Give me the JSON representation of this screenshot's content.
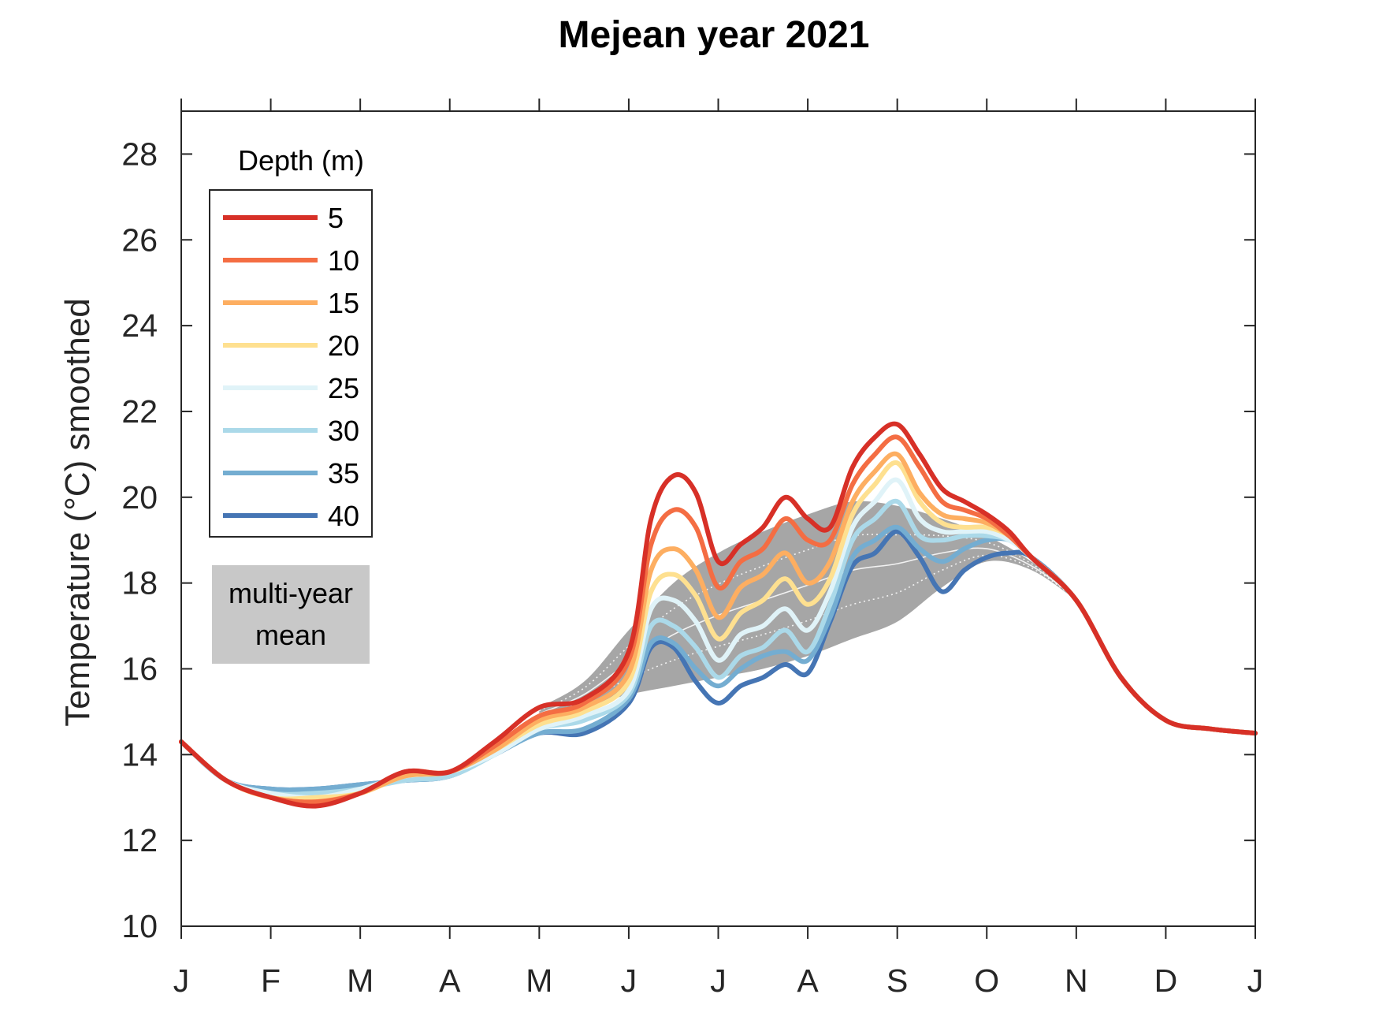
{
  "chart_data": {
    "type": "line",
    "title": "Mejean year 2021",
    "xlabel": "",
    "ylabel": "Temperature (°C) smoothed",
    "ylim": [
      10,
      29
    ],
    "yticks": [
      10,
      12,
      14,
      16,
      18,
      20,
      22,
      24,
      26,
      28
    ],
    "xlim": [
      0,
      12
    ],
    "month_ticks": [
      "J",
      "F",
      "M",
      "A",
      "M",
      "J",
      "J",
      "A",
      "S",
      "O",
      "N",
      "D",
      "J"
    ],
    "grid": false,
    "legend": {
      "title": "Depth (m)",
      "placement": "top-left"
    },
    "x_unit": "month",
    "x": [
      0,
      0.5,
      1,
      1.5,
      2,
      2.5,
      3,
      3.5,
      4,
      4.5,
      5,
      5.25,
      5.5,
      5.75,
      6,
      6.25,
      6.5,
      6.75,
      7,
      7.25,
      7.5,
      7.75,
      8,
      8.25,
      8.5,
      8.75,
      9,
      9.25,
      9.5,
      10,
      10.5,
      11,
      11.5,
      12
    ],
    "series": [
      {
        "name": "5",
        "color": "#d73027",
        "values": [
          14.3,
          13.4,
          13.0,
          12.8,
          13.1,
          13.6,
          13.6,
          14.3,
          15.1,
          15.3,
          16.4,
          19.5,
          20.5,
          20.1,
          18.5,
          18.9,
          19.3,
          20.0,
          19.5,
          19.3,
          20.7,
          21.4,
          21.7,
          21.0,
          20.2,
          19.9,
          19.6,
          19.2,
          18.6,
          17.6,
          15.8,
          14.8,
          14.6,
          14.5
        ]
      },
      {
        "name": "10",
        "color": "#f46d43",
        "values": [
          14.3,
          13.4,
          13.0,
          12.9,
          13.1,
          13.6,
          13.6,
          14.2,
          14.9,
          15.2,
          16.2,
          18.9,
          19.7,
          19.3,
          17.9,
          18.5,
          18.8,
          19.5,
          19.0,
          19.0,
          20.3,
          21.0,
          21.4,
          20.7,
          19.9,
          19.7,
          19.5,
          19.1,
          18.6,
          17.6,
          15.8,
          14.8,
          14.6,
          14.5
        ]
      },
      {
        "name": "15",
        "color": "#fdae61",
        "values": [
          14.3,
          13.4,
          13.0,
          12.9,
          13.1,
          13.5,
          13.6,
          14.1,
          14.8,
          15.1,
          15.9,
          18.3,
          18.8,
          18.3,
          17.2,
          17.9,
          18.2,
          18.7,
          18.0,
          18.5,
          19.9,
          20.6,
          21.0,
          20.1,
          19.6,
          19.5,
          19.4,
          19.1,
          18.6,
          17.6,
          15.8,
          14.8,
          14.6,
          14.5
        ]
      },
      {
        "name": "20",
        "color": "#fee090",
        "values": [
          14.3,
          13.4,
          13.0,
          13.0,
          13.1,
          13.5,
          13.6,
          14.1,
          14.7,
          15.0,
          15.7,
          17.8,
          18.2,
          17.7,
          16.7,
          17.3,
          17.6,
          18.1,
          17.5,
          18.1,
          19.6,
          20.3,
          20.8,
          19.9,
          19.4,
          19.3,
          19.3,
          19.1,
          18.6,
          17.6,
          15.8,
          14.8,
          14.6,
          14.5
        ]
      },
      {
        "name": "25",
        "color": "#e0f3f8",
        "values": [
          14.3,
          13.4,
          13.1,
          13.0,
          13.2,
          13.5,
          13.6,
          14.0,
          14.6,
          14.9,
          15.5,
          17.4,
          17.6,
          17.1,
          16.2,
          16.8,
          17.0,
          17.4,
          16.9,
          17.8,
          19.3,
          19.9,
          20.4,
          19.5,
          19.2,
          19.2,
          19.2,
          19.0,
          18.6,
          17.6,
          15.8,
          14.8,
          14.6,
          14.5
        ]
      },
      {
        "name": "30",
        "color": "#abd9e9",
        "values": [
          14.3,
          13.4,
          13.1,
          13.1,
          13.2,
          13.4,
          13.5,
          14.0,
          14.6,
          14.8,
          15.4,
          17.0,
          17.0,
          16.5,
          15.8,
          16.3,
          16.5,
          16.9,
          16.4,
          17.5,
          19.0,
          19.5,
          19.9,
          19.1,
          19.0,
          19.1,
          19.1,
          19.0,
          18.6,
          17.6,
          15.8,
          14.8,
          14.6,
          14.5
        ]
      },
      {
        "name": "35",
        "color": "#74add1",
        "values": [
          14.3,
          13.4,
          13.2,
          13.2,
          13.3,
          13.4,
          13.5,
          14.0,
          14.5,
          14.6,
          15.3,
          16.6,
          16.6,
          16.0,
          15.6,
          16.0,
          16.3,
          16.4,
          16.2,
          17.2,
          18.6,
          19.0,
          19.3,
          18.8,
          18.5,
          18.8,
          19.0,
          19.0,
          18.6,
          17.6,
          15.8,
          14.8,
          14.6,
          14.5
        ]
      },
      {
        "name": "40",
        "color": "#4575b4",
        "values": [
          14.3,
          13.4,
          13.2,
          13.2,
          13.3,
          13.4,
          13.5,
          14.0,
          14.5,
          14.5,
          15.2,
          16.5,
          16.5,
          15.7,
          15.2,
          15.6,
          15.8,
          16.1,
          15.9,
          17.1,
          18.4,
          18.7,
          19.2,
          18.6,
          17.8,
          18.3,
          18.6,
          18.7,
          18.6,
          17.6,
          15.8,
          14.8,
          14.6,
          14.5
        ]
      }
    ],
    "multi_year_mean": {
      "label": "multi-year mean",
      "color": "#a6a6a6",
      "x": [
        4.0,
        4.5,
        5.0,
        5.5,
        6.0,
        6.5,
        7.0,
        7.5,
        8.0,
        8.5,
        9.0,
        9.5,
        10.0
      ],
      "upper": [
        15.1,
        15.7,
        16.9,
        18.0,
        18.7,
        19.2,
        19.6,
        19.9,
        19.8,
        19.5,
        19.1,
        18.5,
        17.7
      ],
      "lower": [
        14.8,
        15.1,
        15.4,
        15.6,
        15.8,
        16.0,
        16.3,
        16.7,
        17.1,
        17.9,
        18.5,
        18.3,
        17.6
      ]
    }
  }
}
